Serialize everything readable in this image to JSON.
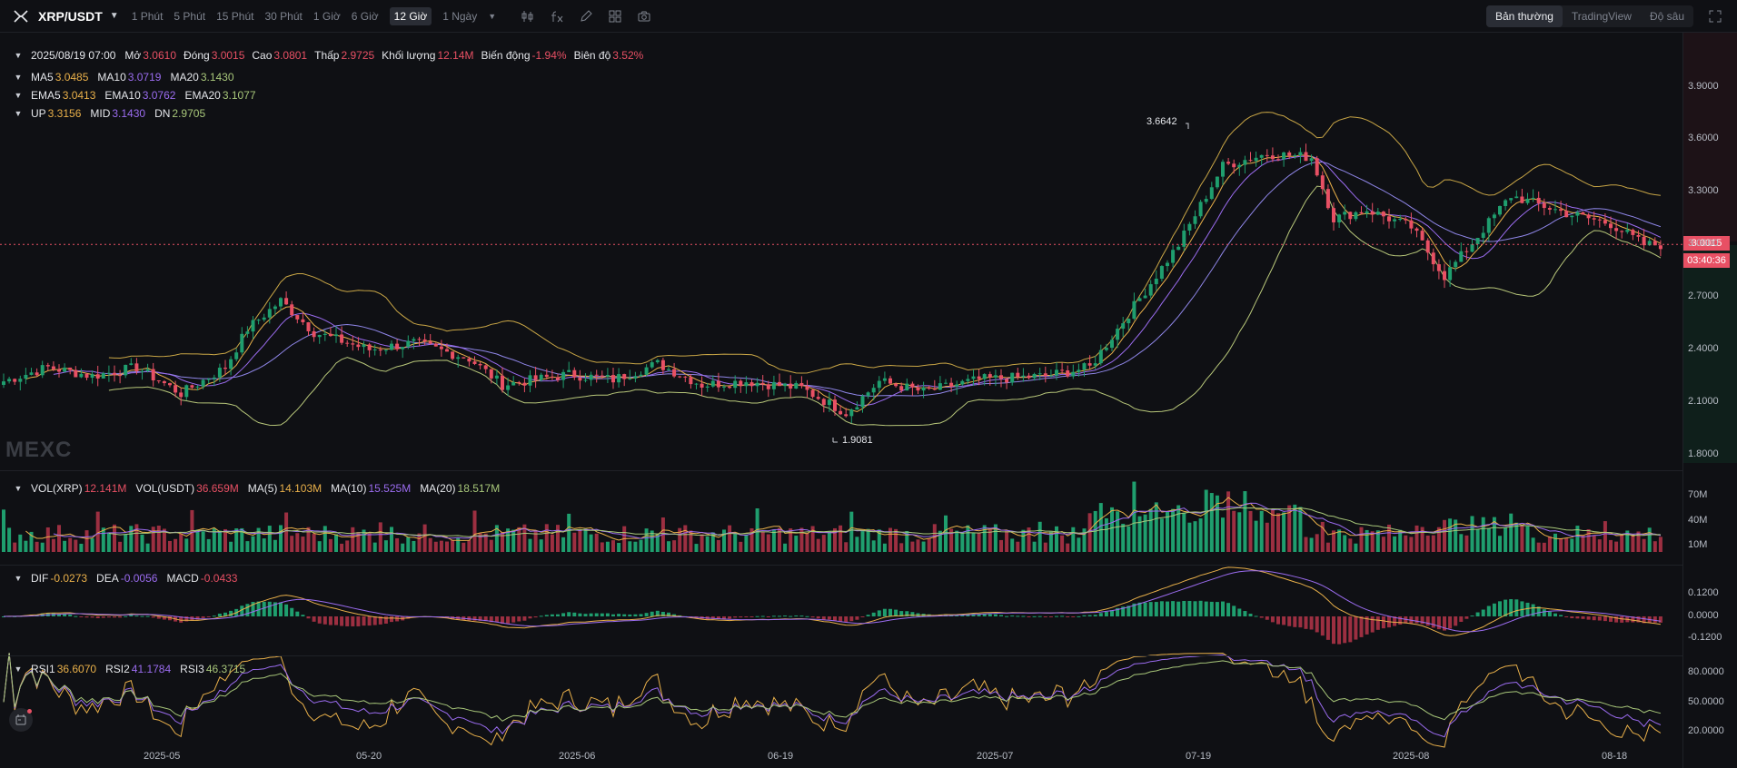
{
  "header": {
    "pair": "XRP/USDT",
    "timeframes": [
      {
        "label": "1 Phút",
        "active": false
      },
      {
        "label": "5 Phút",
        "active": false
      },
      {
        "label": "15 Phút",
        "active": false
      },
      {
        "label": "30 Phút",
        "active": false
      },
      {
        "label": "1 Giờ",
        "active": false
      },
      {
        "label": "6 Giờ",
        "active": false
      },
      {
        "label": "12 Giờ",
        "active": true
      },
      {
        "label": "1 Ngày",
        "active": false
      }
    ],
    "views": [
      {
        "label": "Bản thường",
        "active": true
      },
      {
        "label": "TradingView",
        "active": false
      },
      {
        "label": "Độ sâu",
        "active": false
      }
    ]
  },
  "ohlc": {
    "date": "2025/08/19 07:00",
    "open_label": "Mở",
    "open": "3.0610",
    "close_label": "Đóng",
    "close": "3.0015",
    "high_label": "Cao",
    "high": "3.0801",
    "low_label": "Thấp",
    "low": "2.9725",
    "volume_label": "Khối lượng",
    "volume": "12.14M",
    "change_label": "Biến động",
    "change": "-1.94%",
    "amplitude_label": "Biên độ",
    "amplitude": "3.52%"
  },
  "indicators": {
    "ma": [
      {
        "label": "MA5",
        "value": "3.0485",
        "color": "#e9b04a"
      },
      {
        "label": "MA10",
        "value": "3.0719",
        "color": "#9b6cf0"
      },
      {
        "label": "MA20",
        "value": "3.1430",
        "color": "#a8c77a"
      }
    ],
    "ema": [
      {
        "label": "EMA5",
        "value": "3.0413",
        "color": "#e9b04a"
      },
      {
        "label": "EMA10",
        "value": "3.0762",
        "color": "#9b6cf0"
      },
      {
        "label": "EMA20",
        "value": "3.1077",
        "color": "#a8c77a"
      }
    ],
    "boll": [
      {
        "label": "UP",
        "value": "3.3156",
        "color": "#e9b04a"
      },
      {
        "label": "MID",
        "value": "3.1430",
        "color": "#9b6cf0"
      },
      {
        "label": "DN",
        "value": "2.9705",
        "color": "#a8c77a"
      }
    ],
    "vol": [
      {
        "label": "VOL(XRP)",
        "value": "12.141M",
        "color": "#e85064"
      },
      {
        "label": "VOL(USDT)",
        "value": "36.659M",
        "color": "#e85064"
      },
      {
        "label": "MA(5)",
        "value": "14.103M",
        "color": "#e9b04a"
      },
      {
        "label": "MA(10)",
        "value": "15.525M",
        "color": "#9b6cf0"
      },
      {
        "label": "MA(20)",
        "value": "18.517M",
        "color": "#a8c77a"
      }
    ],
    "macd": [
      {
        "label": "DIF",
        "value": "-0.0273",
        "color": "#e9b04a"
      },
      {
        "label": "DEA",
        "value": "-0.0056",
        "color": "#9b6cf0"
      },
      {
        "label": "MACD",
        "value": "-0.0433",
        "color": "#e85064"
      }
    ],
    "rsi": [
      {
        "label": "RSI1",
        "value": "36.6070",
        "color": "#e9b04a"
      },
      {
        "label": "RSI2",
        "value": "41.1784",
        "color": "#9b6cf0"
      },
      {
        "label": "RSI3",
        "value": "46.3715",
        "color": "#a8c77a"
      }
    ]
  },
  "axes": {
    "price_ticks": [
      "3.9000",
      "3.6000",
      "3.3000",
      "3.0000",
      "2.7000",
      "2.4000",
      "2.1000",
      "1.8000"
    ],
    "vol_ticks": [
      "70M",
      "40M",
      "10M"
    ],
    "macd_ticks": [
      "0.1200",
      "0.0000",
      "-0.1200"
    ],
    "rsi_ticks": [
      "80.0000",
      "50.0000",
      "20.0000"
    ],
    "x_ticks": [
      "2025-05",
      "05-20",
      "2025-06",
      "06-19",
      "2025-07",
      "07-19",
      "2025-08",
      "08-18"
    ]
  },
  "price_tag": {
    "price": "3.0015",
    "countdown": "03:40:36"
  },
  "annotations": {
    "high": "3.6642",
    "low": "1.9081"
  },
  "watermark": "MEXC",
  "colors": {
    "up": "#1f9e6e",
    "down": "#e85064",
    "ma5": "#e9b04a",
    "ma10": "#9b6cf0",
    "ma20": "#a8c77a"
  },
  "chart_data": {
    "type": "candlestick",
    "interval": "12h",
    "series_note": "",
    "price_ylim": [
      1.75,
      4.05
    ],
    "anchors": [
      {
        "t": 0,
        "p": 2.22
      },
      {
        "t": 8,
        "p": 2.3
      },
      {
        "t": 16,
        "p": 2.25
      },
      {
        "t": 24,
        "p": 2.3
      },
      {
        "t": 32,
        "p": 2.15
      },
      {
        "t": 40,
        "p": 2.3
      },
      {
        "t": 44,
        "p": 2.52
      },
      {
        "t": 50,
        "p": 2.68
      },
      {
        "t": 56,
        "p": 2.5
      },
      {
        "t": 66,
        "p": 2.4
      },
      {
        "t": 74,
        "p": 2.44
      },
      {
        "t": 84,
        "p": 2.35
      },
      {
        "t": 90,
        "p": 2.2
      },
      {
        "t": 102,
        "p": 2.26
      },
      {
        "t": 110,
        "p": 2.23
      },
      {
        "t": 118,
        "p": 2.32
      },
      {
        "t": 126,
        "p": 2.2
      },
      {
        "t": 134,
        "p": 2.22
      },
      {
        "t": 144,
        "p": 2.18
      },
      {
        "t": 152,
        "p": 2.04
      },
      {
        "t": 158,
        "p": 2.22
      },
      {
        "t": 166,
        "p": 2.16
      },
      {
        "t": 176,
        "p": 2.23
      },
      {
        "t": 188,
        "p": 2.25
      },
      {
        "t": 196,
        "p": 2.3
      },
      {
        "t": 204,
        "p": 2.65
      },
      {
        "t": 212,
        "p": 3.0
      },
      {
        "t": 220,
        "p": 3.45
      },
      {
        "t": 228,
        "p": 3.52
      },
      {
        "t": 236,
        "p": 3.5
      },
      {
        "t": 240,
        "p": 3.15
      },
      {
        "t": 246,
        "p": 3.2
      },
      {
        "t": 254,
        "p": 3.1
      },
      {
        "t": 260,
        "p": 2.82
      },
      {
        "t": 266,
        "p": 3.05
      },
      {
        "t": 272,
        "p": 3.28
      },
      {
        "t": 282,
        "p": 3.18
      },
      {
        "t": 290,
        "p": 3.12
      },
      {
        "t": 296,
        "p": 3.0
      }
    ]
  }
}
